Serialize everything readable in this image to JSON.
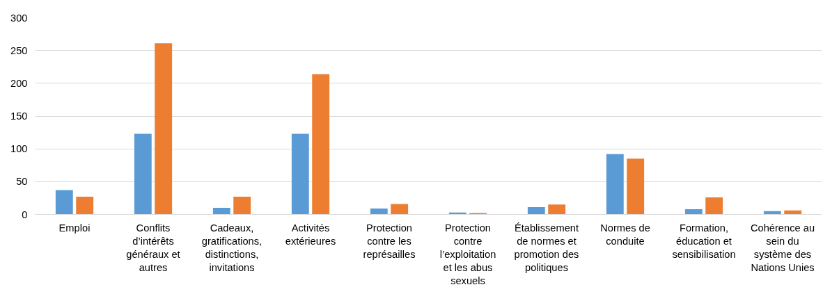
{
  "chart_data": {
    "type": "bar",
    "categories": [
      "Emploi",
      "Conflits d’intérêts généraux et autres",
      "Cadeaux, gratifications, distinctions, invitations",
      "Activités extérieures",
      "Protection contre les représailles",
      "Protection contre l’exploitation et les abus sexuels",
      "Établissement de normes et promotion des politiques",
      "Normes de conduite",
      "Formation, éducation et sensibilisation",
      "Cohérence au sein du système des Nations Unies"
    ],
    "series": [
      {
        "color": "#5b9bd5",
        "values": [
          37,
          123,
          10,
          123,
          9,
          3,
          11,
          92,
          8,
          5
        ]
      },
      {
        "color": "#ed7d31",
        "values": [
          27,
          261,
          27,
          214,
          16,
          2,
          15,
          85,
          26,
          6
        ]
      }
    ],
    "ylim": [
      0,
      300
    ],
    "yticks": [
      0,
      50,
      100,
      150,
      200,
      250,
      300
    ],
    "grid": "y"
  }
}
